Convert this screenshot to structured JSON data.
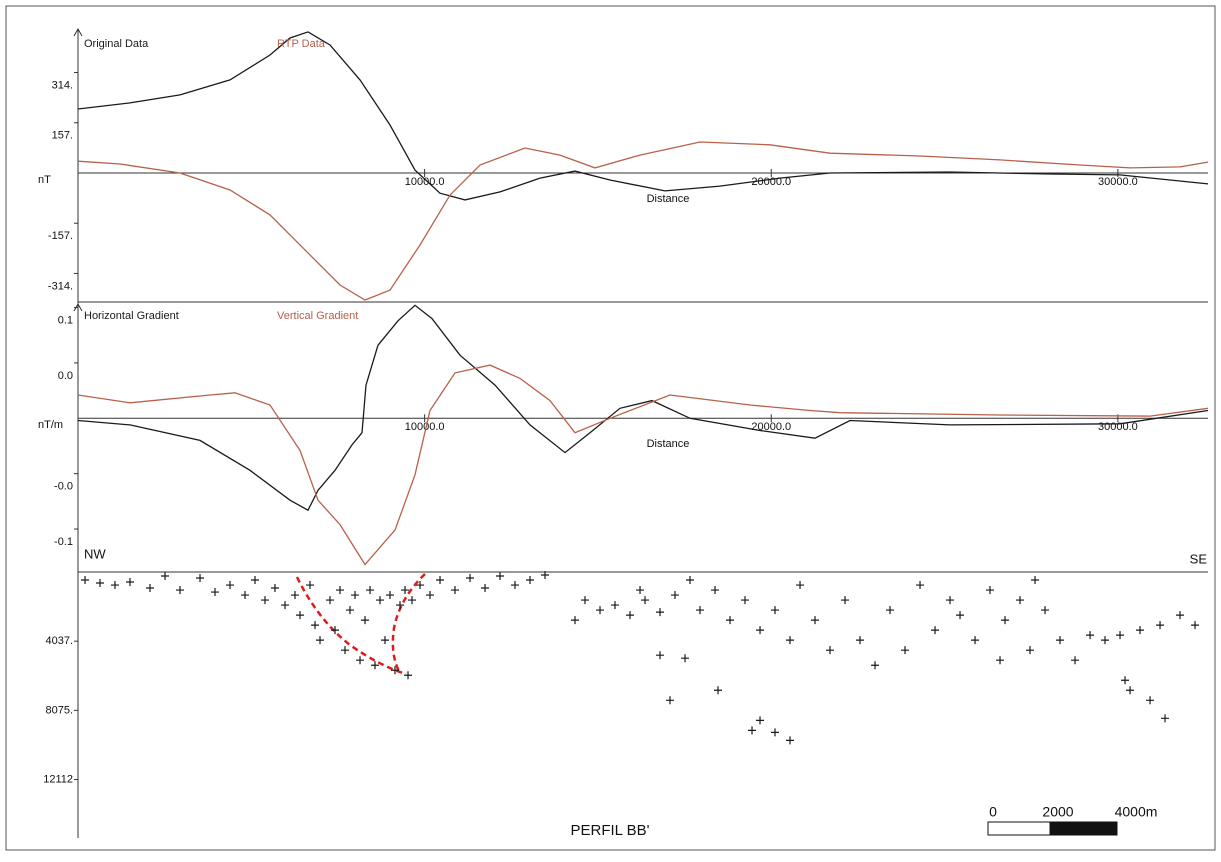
{
  "chart_data": [
    {
      "type": "line",
      "xlabel": "Distance",
      "ylabel": "nT",
      "xlim": [
        0,
        32600
      ],
      "ylim": [
        -397,
        447
      ],
      "xticks": [
        {
          "value": 10000,
          "label": "10000.0"
        },
        {
          "value": 20000,
          "label": "20000.0"
        },
        {
          "value": 30000,
          "label": "30000.0"
        }
      ],
      "yticks": [
        {
          "value": 314,
          "label": "314."
        },
        {
          "value": 157,
          "label": "157."
        },
        {
          "value": -157,
          "label": "-157."
        },
        {
          "value": -314,
          "label": "-314."
        }
      ],
      "series": [
        {
          "name": "Original Data",
          "color": "#1a1a1a",
          "x": [
            0,
            1500,
            2943,
            4385,
            5539,
            6116,
            6636,
            7270,
            8136,
            9001,
            9722,
            10444,
            11165,
            12175,
            13329,
            14338,
            15348,
            16935,
            18522,
            20253,
            21695,
            25157,
            28042,
            30062,
            32600
          ],
          "values": [
            200,
            219,
            244,
            291,
            369,
            422,
            441,
            400,
            291,
            150,
            9,
            -63,
            -84,
            -59,
            -16,
            6,
            -22,
            -56,
            -41,
            -16,
            0,
            3,
            -3,
            -6,
            -34
          ]
        },
        {
          "name": "RTP Data",
          "color": "#b8604a",
          "x": [
            0,
            1212,
            2943,
            4385,
            5539,
            6693,
            7559,
            8280,
            9001,
            9867,
            10732,
            11598,
            12896,
            13906,
            14915,
            16214,
            17945,
            19964,
            21695,
            24292,
            26600,
            28908,
            30351,
            31793,
            32600
          ],
          "values": [
            37,
            28,
            0,
            -53,
            -131,
            -256,
            -350,
            -397,
            -366,
            -225,
            -69,
            25,
            78,
            56,
            16,
            56,
            97,
            88,
            62,
            53,
            41,
            25,
            16,
            19,
            34
          ]
        }
      ]
    },
    {
      "type": "line",
      "xlabel": "Distance",
      "ylabel": "nT/m",
      "xlim": [
        0,
        32600
      ],
      "ylim": [
        -0.137,
        0.105
      ],
      "xticks": [
        {
          "value": 10000,
          "label": "10000.0"
        },
        {
          "value": 20000,
          "label": "20000.0"
        },
        {
          "value": 30000,
          "label": "30000.0"
        }
      ],
      "yticks": [
        0.1,
        {
          "value": 0.05,
          "label": "0.0"
        },
        {
          "value": -0.05,
          "label": "-0.0"
        },
        -0.1
      ],
      "series": [
        {
          "name": "Horizontal Gradient",
          "color": "#1a1a1a",
          "x": [
            0,
            1500,
            3520,
            4962,
            6116,
            6636,
            6924,
            7415,
            7905,
            8193,
            8309,
            8655,
            9232,
            9722,
            10213,
            11021,
            12031,
            13040,
            14050,
            14771,
            15637,
            16560,
            17656,
            19676,
            21262,
            22272,
            25157,
            30062,
            32600
          ],
          "values": [
            -0.002,
            -0.006,
            -0.02,
            -0.047,
            -0.074,
            -0.083,
            -0.065,
            -0.047,
            -0.024,
            -0.013,
            0.03,
            0.066,
            0.088,
            0.102,
            0.09,
            0.057,
            0.03,
            -0.006,
            -0.031,
            -0.013,
            0.009,
            0.016,
            0,
            -0.011,
            -0.018,
            -0.002,
            -0.006,
            -0.005,
            0.007
          ]
        },
        {
          "name": "Vertical Gradient",
          "color": "#b8604a",
          "x": [
            0,
            1500,
            3808,
            4530,
            5539,
            6405,
            6924,
            7559,
            8280,
            9145,
            9722,
            10155,
            10876,
            11886,
            12752,
            13617,
            14338,
            15348,
            17079,
            19387,
            21118,
            21983,
            26600,
            30928,
            32600
          ],
          "values": [
            0.021,
            0.014,
            0.021,
            0.023,
            0.012,
            -0.029,
            -0.074,
            -0.096,
            -0.132,
            -0.101,
            -0.051,
            0.007,
            0.041,
            0.048,
            0.036,
            0.016,
            -0.013,
            0,
            0.021,
            0.012,
            0.007,
            0.005,
            0.003,
            0.002,
            0.009
          ]
        }
      ]
    },
    {
      "type": "scatter",
      "title": "PERFIL BB'",
      "left_label": "NW",
      "right_label": "SE",
      "scale_bar_labels": [
        "0",
        "2000",
        "4000m"
      ],
      "color": "#1a1a1a",
      "y_inverted": true,
      "xlim": [
        0,
        32600
      ],
      "ylim": [
        0,
        15000
      ],
      "yticks": [
        {
          "value": 4037,
          "label": "4037."
        },
        {
          "value": 8075,
          "label": "8075."
        },
        12112
      ],
      "x": [
        202,
        635,
        1067,
        1500,
        2077,
        2510,
        2943,
        3520,
        3952,
        4385,
        4818,
        5106,
        5395,
        5683,
        5972,
        6260,
        6405,
        6693,
        6838,
        6982,
        7270,
        7415,
        7559,
        7703,
        7847,
        7992,
        8136,
        8280,
        8425,
        8568,
        8713,
        8857,
        9001,
        9145,
        9290,
        9434,
        9521,
        9636,
        9867,
        10155,
        10444,
        10876,
        11309,
        11742,
        12175,
        12607,
        13040,
        13473,
        14338,
        14627,
        15060,
        15492,
        15925,
        16358,
        16791,
        17223,
        17656,
        17945,
        18378,
        18810,
        19243,
        19676,
        20108,
        20541,
        20830,
        21262,
        21695,
        22128,
        22561,
        22994,
        23426,
        23859,
        24292,
        24725,
        25157,
        25446,
        25879,
        26311,
        26744,
        27177,
        27610,
        27898,
        28331,
        28764,
        29197,
        29629,
        30062,
        30639,
        31216,
        31793,
        32226,
        16791,
        17512,
        17079,
        18464,
        19676,
        19445,
        20108,
        20541,
        30351,
        30928,
        31360,
        30206,
        16214,
        26600,
        27465
      ],
      "values": [
        468,
        644,
        761,
        585,
        936,
        234,
        1053,
        351,
        1170,
        761,
        1346,
        468,
        1638,
        936,
        1931,
        1346,
        2516,
        761,
        3101,
        3978,
        1638,
        3393,
        1053,
        4563,
        2223,
        1346,
        5148,
        2808,
        1053,
        5441,
        1638,
        3978,
        1346,
        5733,
        1931,
        1053,
        6026,
        1638,
        761,
        1346,
        468,
        1053,
        351,
        936,
        234,
        761,
        468,
        175,
        2808,
        1638,
        2223,
        1931,
        2516,
        1638,
        2340,
        1346,
        468,
        2223,
        1053,
        2808,
        1638,
        3393,
        2223,
        3978,
        761,
        2808,
        4563,
        1638,
        3978,
        5441,
        2223,
        4563,
        761,
        3393,
        1638,
        2516,
        3978,
        1053,
        2808,
        1638,
        468,
        2223,
        3978,
        5148,
        3686,
        3978,
        3686,
        3393,
        3101,
        2516,
        3101,
        4856,
        5031,
        7488,
        6903,
        8658,
        9243,
        9360,
        9828,
        6903,
        7488,
        8541,
        6318,
        1053,
        5148,
        4563
      ]
    }
  ]
}
